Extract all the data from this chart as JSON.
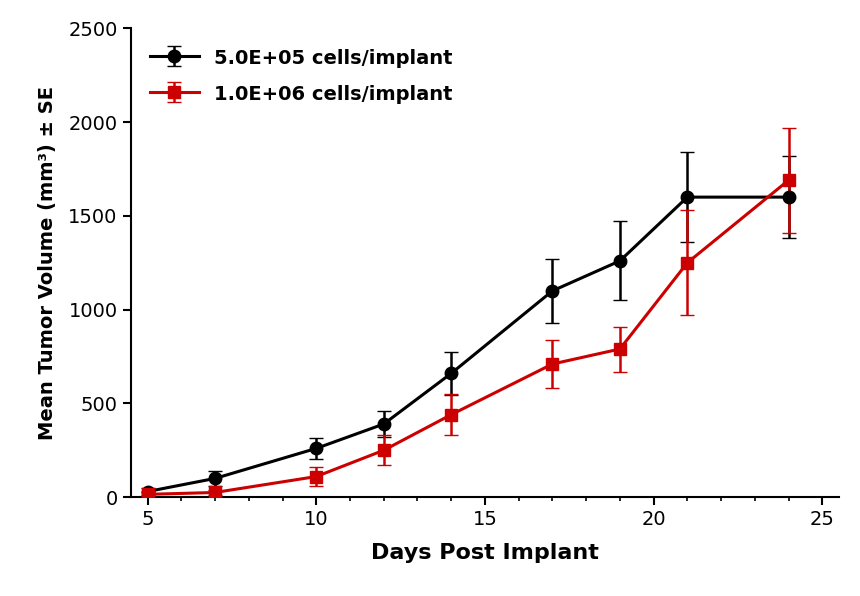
{
  "series1_label": "5.0E+05 cells/implant",
  "series2_label": "1.0E+06 cells/implant",
  "series1_color": "#000000",
  "series2_color": "#cc0000",
  "series1_x": [
    5,
    7,
    10,
    12,
    14,
    17,
    19,
    21,
    24
  ],
  "series1_y": [
    30,
    100,
    260,
    390,
    660,
    1100,
    1260,
    1600,
    1600
  ],
  "series1_yerr": [
    20,
    40,
    55,
    70,
    115,
    170,
    210,
    240,
    220
  ],
  "series2_x": [
    5,
    7,
    10,
    12,
    14,
    17,
    19,
    21,
    24
  ],
  "series2_y": [
    15,
    25,
    110,
    250,
    440,
    710,
    790,
    1250,
    1690
  ],
  "series2_yerr": [
    10,
    15,
    50,
    80,
    110,
    130,
    120,
    280,
    280
  ],
  "xlabel": "Days Post Implant",
  "ylabel": "Mean Tumor Volume (mm³) ± SE",
  "xlim": [
    4.5,
    25.5
  ],
  "ylim": [
    0,
    2500
  ],
  "yticks": [
    0,
    500,
    1000,
    1500,
    2000,
    2500
  ],
  "xticks": [
    5,
    10,
    15,
    20,
    25
  ],
  "background_color": "#ffffff",
  "plot_bg_color": "#ffffff",
  "marker_size_circle": 9,
  "marker_size_square": 9,
  "linewidth": 2.2,
  "capsize": 5,
  "elinewidth": 1.8,
  "xlabel_fontsize": 16,
  "ylabel_fontsize": 14,
  "tick_labelsize": 14,
  "legend_fontsize": 14
}
